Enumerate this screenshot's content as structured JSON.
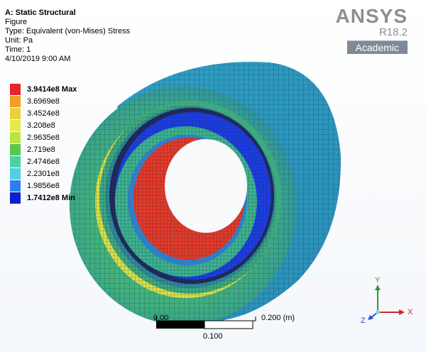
{
  "info": {
    "title": "A: Static Structural",
    "figure": "Figure",
    "type": "Type: Equivalent (von-Mises) Stress",
    "unit": "Unit: Pa",
    "time": "Time: 1",
    "date": "4/10/2019 9:00 AM"
  },
  "brand": {
    "name": "ANSYS",
    "version": "R18.2",
    "edition": "Academic"
  },
  "legend": [
    {
      "label": "3.9414e8 Max",
      "color": "#e4262b",
      "bold": true
    },
    {
      "label": "3.6969e8",
      "color": "#f39d26",
      "bold": false
    },
    {
      "label": "3.4524e8",
      "color": "#e8d23f",
      "bold": false
    },
    {
      "label": "3.208e8",
      "color": "#e6e84a",
      "bold": false
    },
    {
      "label": "2.9635e8",
      "color": "#b9e24b",
      "bold": false
    },
    {
      "label": "2.719e8",
      "color": "#58c84f",
      "bold": false
    },
    {
      "label": "2.4746e8",
      "color": "#4fd0a2",
      "bold": false
    },
    {
      "label": "2.2301e8",
      "color": "#52cfe0",
      "bold": false
    },
    {
      "label": "1.9856e8",
      "color": "#2f7ef0",
      "bold": false
    },
    {
      "label": "1.7412e8 Min",
      "color": "#0d1fcf",
      "bold": true
    }
  ],
  "scale": {
    "zero": "0.00",
    "mid": "0.100",
    "end": "0.200 (m)"
  },
  "triad": {
    "x_label": "X",
    "y_label": "Y",
    "z_label": "Z",
    "x_color": "#d8202a",
    "y_color": "#2a9a34",
    "z_color": "#2a4fd8"
  }
}
